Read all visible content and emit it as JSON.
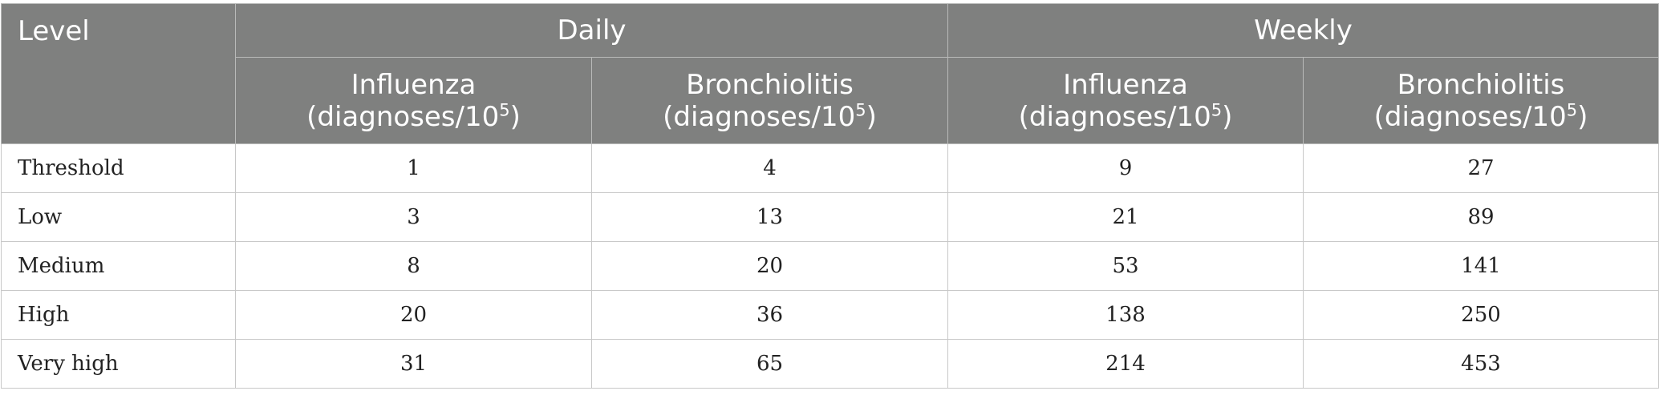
{
  "header": {
    "level": "Level",
    "groups": [
      "Daily",
      "Weekly"
    ],
    "subheaders": [
      {
        "name": "Influenza",
        "unit": "(diagnoses/10",
        "sup": "5",
        "close": ")"
      },
      {
        "name": "Bronchiolitis",
        "unit": "(diagnoses/10",
        "sup": "5",
        "close": ")"
      },
      {
        "name": "Influenza",
        "unit": "(diagnoses/10",
        "sup": "5",
        "close": ")"
      },
      {
        "name": "Bronchiolitis",
        "unit": "(diagnoses/10",
        "sup": "5",
        "close": ")"
      }
    ]
  },
  "rows": [
    {
      "label": "Threshold",
      "values": [
        "1",
        "4",
        "9",
        "27"
      ]
    },
    {
      "label": "Low",
      "values": [
        "3",
        "13",
        "21",
        "89"
      ]
    },
    {
      "label": "Medium",
      "values": [
        "8",
        "20",
        "53",
        "141"
      ]
    },
    {
      "label": "High",
      "values": [
        "20",
        "36",
        "138",
        "250"
      ]
    },
    {
      "label": "Very high",
      "values": [
        "31",
        "65",
        "214",
        "453"
      ]
    }
  ]
}
